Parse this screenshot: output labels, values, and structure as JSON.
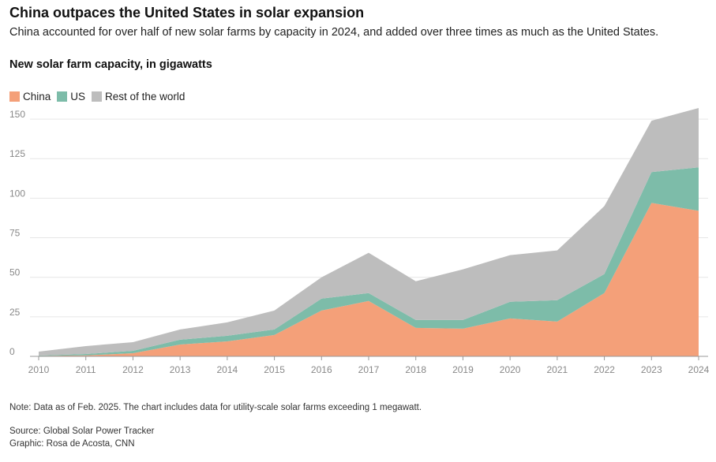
{
  "header": {
    "title": "China outpaces the United States in solar expansion",
    "subtitle": "China accounted for over half of new solar farms by capacity in 2024, and added over three times as much as the United States."
  },
  "colors": {
    "china": "#f4a079",
    "us": "#7dbca9",
    "rest": "#bdbdbd",
    "grid": "#e6e6e6",
    "axis": "#999999",
    "tick_text": "#888888"
  },
  "chart_data": {
    "type": "area",
    "stacked": true,
    "title": "New solar farm capacity, in gigawatts",
    "xlabel": "",
    "ylabel": "",
    "ylim": [
      0,
      160
    ],
    "yticks": [
      0,
      25,
      50,
      75,
      100,
      125,
      150
    ],
    "x": [
      "2010",
      "2011",
      "2012",
      "2013",
      "2014",
      "2015",
      "2016",
      "2017",
      "2018",
      "2019",
      "2020",
      "2021",
      "2022",
      "2023",
      "2024"
    ],
    "series": [
      {
        "name": "China",
        "values": [
          0.3,
          0.6,
          2,
          7.5,
          9.5,
          13.5,
          29,
          35,
          18,
          17.5,
          24,
          22,
          40,
          97,
          92
        ]
      },
      {
        "name": "US",
        "values": [
          0.2,
          0.9,
          1.5,
          3,
          3.5,
          3.5,
          7.5,
          5,
          5,
          5.5,
          10.5,
          13.5,
          12,
          19.5,
          27.5
        ]
      },
      {
        "name": "Rest of the world",
        "values": [
          2.5,
          5,
          5.5,
          6.5,
          8.5,
          12,
          13.5,
          25.5,
          24.5,
          32,
          29.5,
          31.5,
          43,
          32.5,
          37.5
        ]
      }
    ],
    "legend": [
      "China",
      "US",
      "Rest of the world"
    ],
    "legend_position": "top-left"
  },
  "footer": {
    "note": "Note: Data as of Feb. 2025. The chart includes data for utility-scale solar farms exceeding 1 megawatt.",
    "source": "Source: Global Solar Power Tracker",
    "credit": "Graphic: Rosa de Acosta, CNN"
  }
}
